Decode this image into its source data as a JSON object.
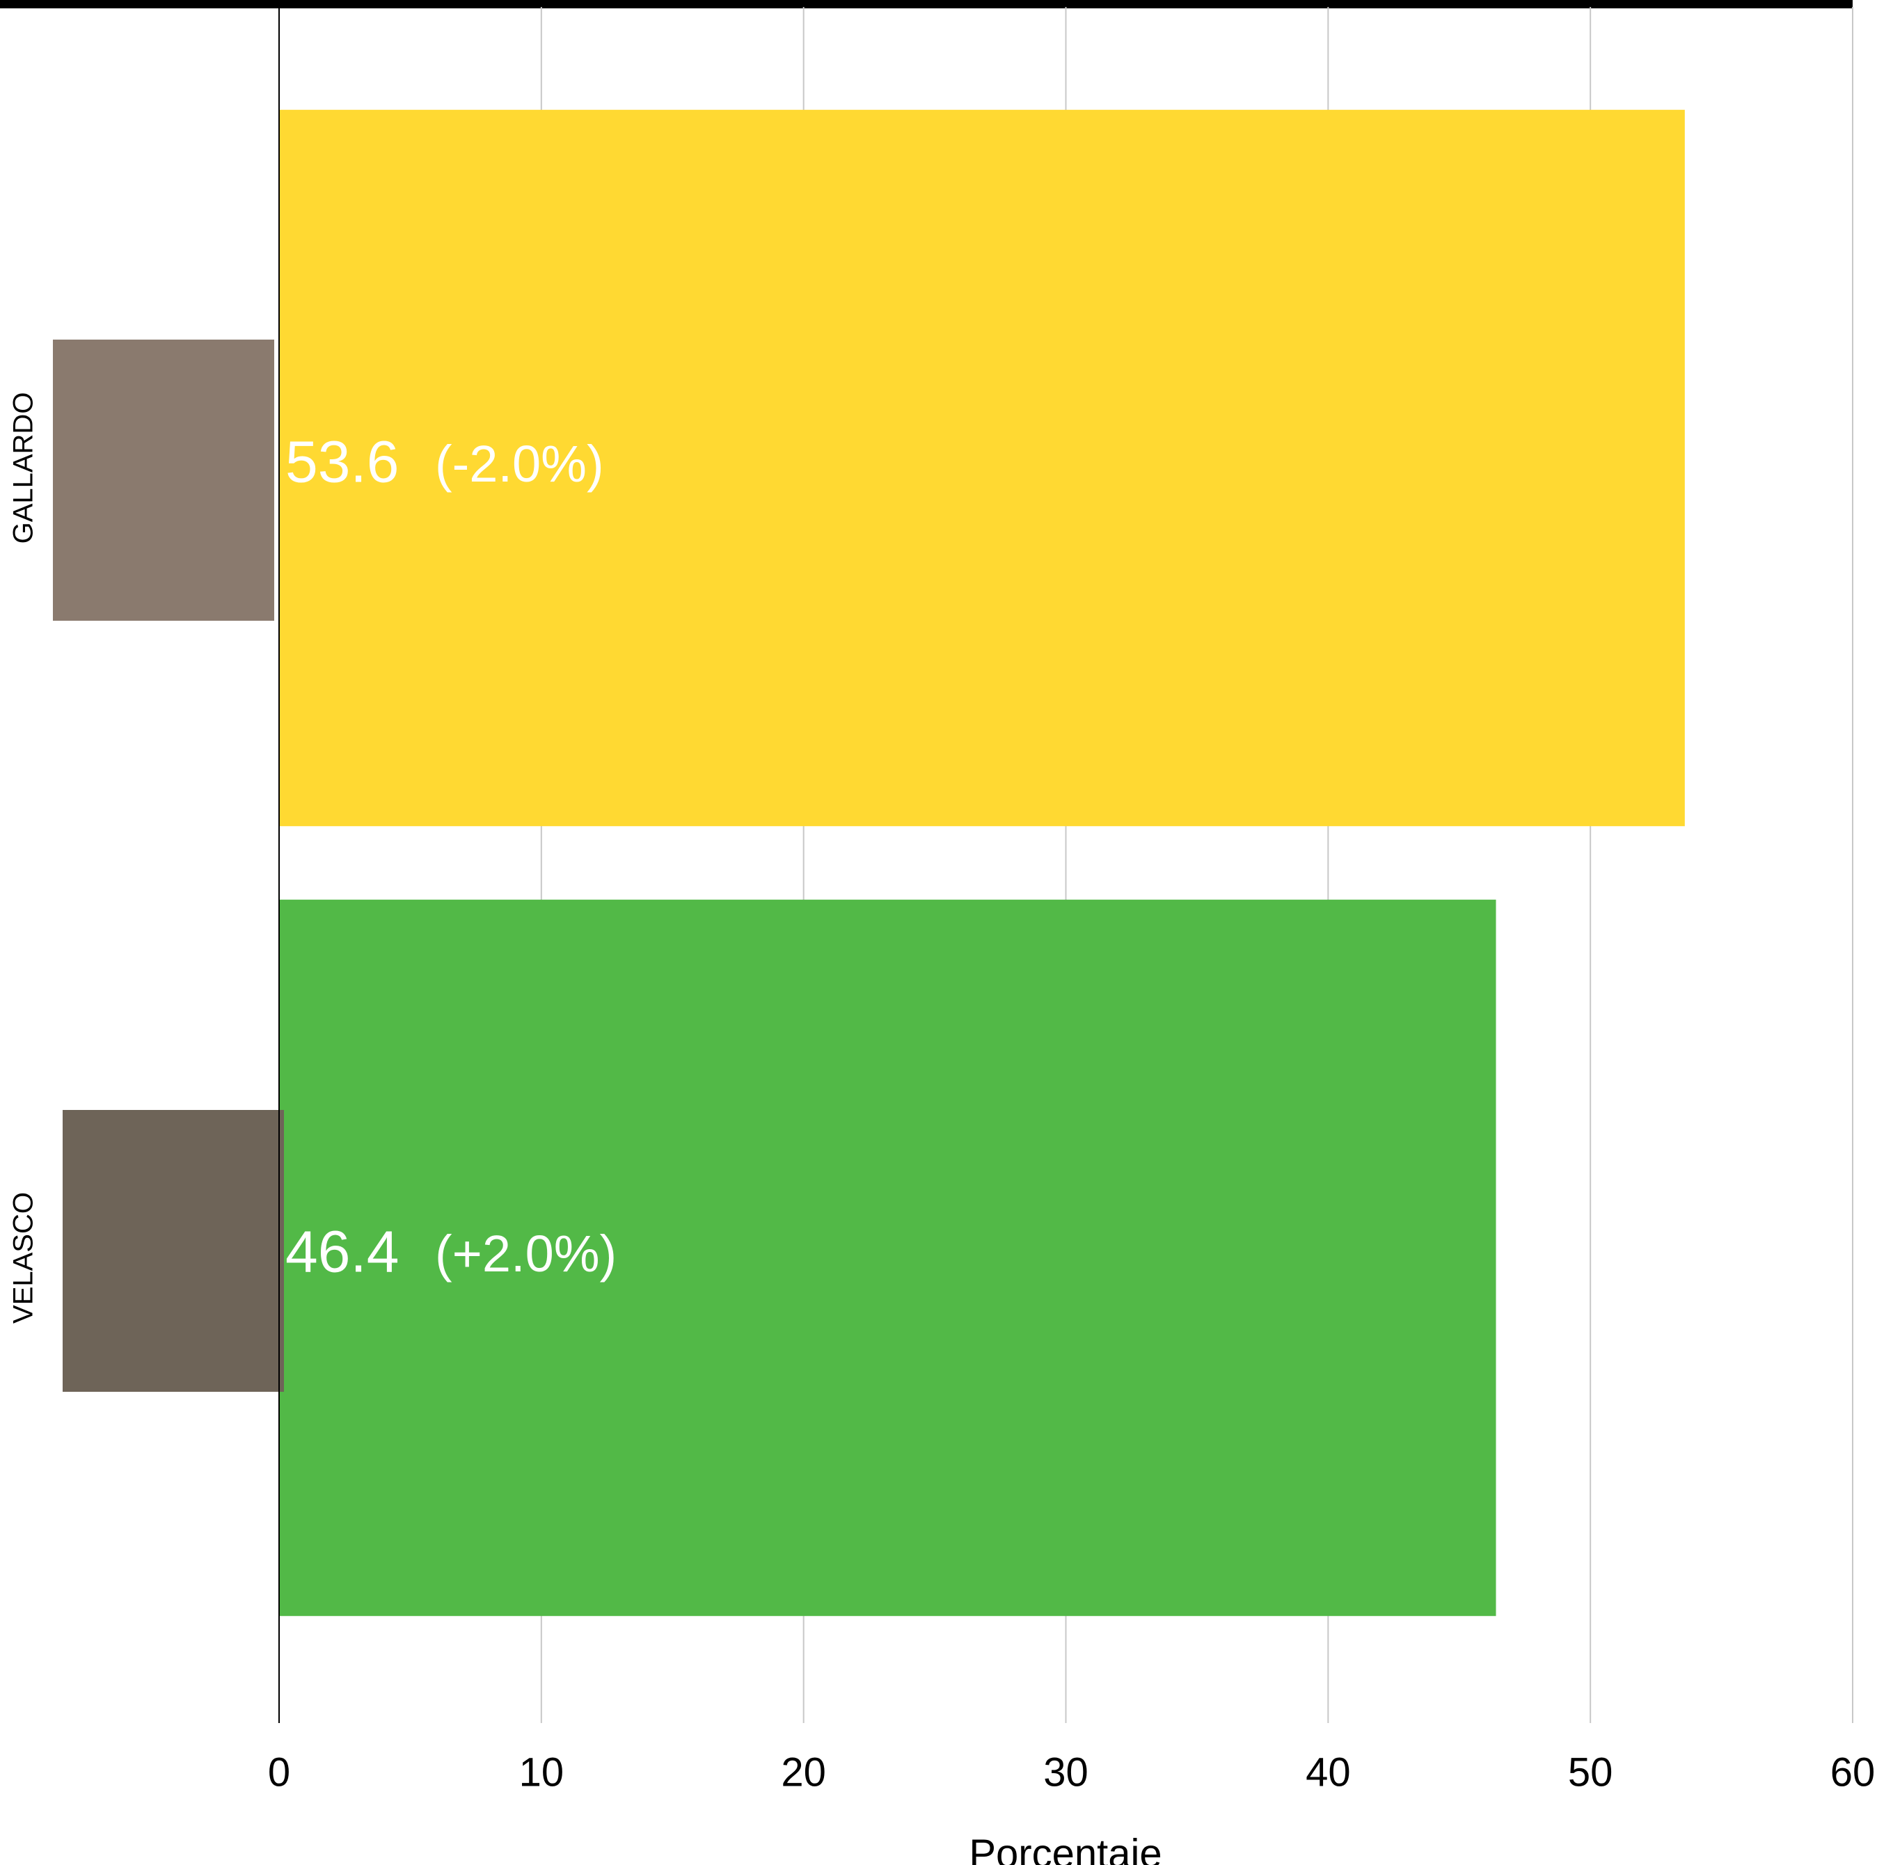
{
  "chart_data": {
    "type": "bar",
    "orientation": "horizontal",
    "categories": [
      "GALLARDO",
      "VELASCO"
    ],
    "values": [
      53.6,
      46.4
    ],
    "annotations": [
      "(-2.0%)",
      "(+2.0%)"
    ],
    "colors": [
      "#FFD932",
      "#52B947"
    ],
    "xlabel": "Porcentaje",
    "xlim": [
      0,
      60
    ],
    "xticks": [
      0,
      10,
      20,
      30,
      40,
      50,
      60
    ],
    "grid": true
  }
}
